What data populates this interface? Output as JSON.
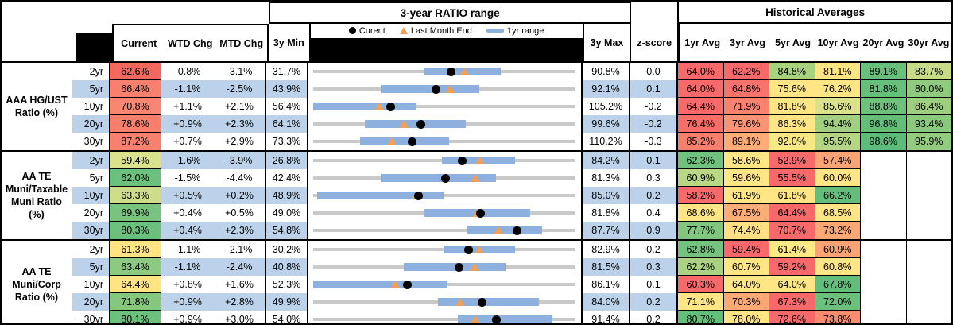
{
  "header": {
    "chart_group_title": "3-year RATIO range",
    "hist_group_title": "Historical Averages",
    "columns": {
      "current": "Current",
      "wtd": "WTD Chg",
      "mtd": "MTD Chg",
      "min": "3y Min",
      "max": "3y Max",
      "z": "z-score"
    },
    "avg_columns": [
      "1yr Avg",
      "3yr Avg",
      "5yr Avg",
      "10yr Avg",
      "20yr Avg",
      "30yr Avg"
    ],
    "legend": {
      "current": "Curent",
      "last_month_end": "Last Month End",
      "range": "1yr range"
    }
  },
  "colors": {
    "stripe": "#BCD2EA",
    "range_bar": "#8EB0DF",
    "range_line": "#C9C9C9",
    "triangle": "#F2A057",
    "dot": "#000000",
    "heat_red": "#F8696B",
    "heat_yellow": "#FFE583",
    "heat_green": "#63BE7B"
  },
  "chart_data": {
    "type": "table",
    "note": "Each row has an inline range chart: gray line spans 3y Min to 3y Max, blue bar is 1yr range, black dot is Current, orange triangle is Last Month End.",
    "sections": [
      {
        "label": "AAA HG/UST Ratio (%)",
        "rows": [
          {
            "tenor": "2yr",
            "current": "62.6%",
            "current_color": "#F4695F",
            "wtd": "-0.8%",
            "mtd": "-3.1%",
            "min": "31.7%",
            "max": "90.8%",
            "z": "0.0",
            "chart": {
              "bar_lo": 56.5,
              "bar_hi": 73.9,
              "lme": 65.7
            },
            "avgs": [
              {
                "v": "64.0%",
                "c": "#F8696B"
              },
              {
                "v": "62.2%",
                "c": "#F8696B"
              },
              {
                "v": "84.8%",
                "c": "#A9D27F"
              },
              {
                "v": "81.1%",
                "c": "#FFE583"
              },
              {
                "v": "89.1%",
                "c": "#69C07C"
              },
              {
                "v": "83.7%",
                "c": "#C7DB88"
              }
            ]
          },
          {
            "tenor": "5yr",
            "current": "66.4%",
            "current_color": "#F8806E",
            "wtd": "-1.1%",
            "mtd": "-2.5%",
            "min": "43.9%",
            "max": "92.1%",
            "z": "0.1",
            "chart": {
              "bar_lo": 56.3,
              "bar_hi": 74.3,
              "lme": 68.9
            },
            "avgs": [
              {
                "v": "64.0%",
                "c": "#F8696B"
              },
              {
                "v": "64.8%",
                "c": "#F8736C"
              },
              {
                "v": "75.6%",
                "c": "#FFE583"
              },
              {
                "v": "76.2%",
                "c": "#FFE583"
              },
              {
                "v": "81.8%",
                "c": "#66BF7B"
              },
              {
                "v": "80.0%",
                "c": "#90CA7E"
              }
            ]
          },
          {
            "tenor": "10yr",
            "current": "70.8%",
            "current_color": "#F98672",
            "wtd": "+1.1%",
            "mtd": "+2.1%",
            "min": "56.4%",
            "max": "105.2%",
            "z": "-0.2",
            "chart": {
              "bar_lo": 56.4,
              "bar_hi": 75.5,
              "lme": 68.7
            },
            "avgs": [
              {
                "v": "64.4%",
                "c": "#F8696B"
              },
              {
                "v": "71.9%",
                "c": "#F9836F"
              },
              {
                "v": "81.8%",
                "c": "#FFE583"
              },
              {
                "v": "85.6%",
                "c": "#DCE28C"
              },
              {
                "v": "88.8%",
                "c": "#6EC17D"
              },
              {
                "v": "86.4%",
                "c": "#9FCE80"
              }
            ]
          },
          {
            "tenor": "20yr",
            "current": "78.6%",
            "current_color": "#F87F6C",
            "wtd": "+0.9%",
            "mtd": "+2.3%",
            "min": "64.1%",
            "max": "99.6%",
            "z": "-0.2",
            "chart": {
              "bar_lo": 71.1,
              "bar_hi": 84.7,
              "lme": 76.3
            },
            "avgs": [
              {
                "v": "76.4%",
                "c": "#F86C6A"
              },
              {
                "v": "79.6%",
                "c": "#FA9474"
              },
              {
                "v": "86.3%",
                "c": "#FFE583"
              },
              {
                "v": "94.4%",
                "c": "#A2CF80"
              },
              {
                "v": "96.8%",
                "c": "#63BE7A"
              },
              {
                "v": "93.4%",
                "c": "#8CC97E"
              }
            ]
          },
          {
            "tenor": "30yr",
            "current": "87.2%",
            "current_color": "#F8806E",
            "wtd": "+0.7%",
            "mtd": "+2.9%",
            "min": "73.3%",
            "max": "110.2%",
            "z": "-0.3",
            "chart": {
              "bar_lo": 79.9,
              "bar_hi": 92.4,
              "lme": 84.3
            },
            "avgs": [
              {
                "v": "85.2%",
                "c": "#F87F6C"
              },
              {
                "v": "89.1%",
                "c": "#FBAC77"
              },
              {
                "v": "92.0%",
                "c": "#F8E883"
              },
              {
                "v": "95.5%",
                "c": "#B5D584"
              },
              {
                "v": "98.6%",
                "c": "#5DBC79"
              },
              {
                "v": "95.9%",
                "c": "#93CC7F"
              }
            ]
          }
        ]
      },
      {
        "label": "AA TE Muni/Taxable Muni Ratio (%)",
        "rows": [
          {
            "tenor": "2yr",
            "current": "59.4%",
            "current_color": "#D9E18C",
            "wtd": "-1.6%",
            "mtd": "-3.9%",
            "min": "26.8%",
            "max": "84.2%",
            "z": "0.1",
            "chart": {
              "bar_lo": 54.9,
              "bar_hi": 70.9,
              "lme": 63.3
            },
            "avgs": [
              {
                "v": "62.3%",
                "c": "#70C17D"
              },
              {
                "v": "58.6%",
                "c": "#FFE583"
              },
              {
                "v": "52.9%",
                "c": "#F8696B"
              },
              {
                "v": "57.4%",
                "c": "#FAA475"
              },
              {
                "v": "",
                "c": ""
              },
              {
                "v": "",
                "c": ""
              }
            ]
          },
          {
            "tenor": "5yr",
            "current": "62.0%",
            "current_color": "#6CC07D",
            "wtd": "-1.5%",
            "mtd": "-4.4%",
            "min": "42.4%",
            "max": "81.3%",
            "z": "0.3",
            "chart": {
              "bar_lo": 52.4,
              "bar_hi": 69.4,
              "lme": 66.4
            },
            "avgs": [
              {
                "v": "60.9%",
                "c": "#B9D785"
              },
              {
                "v": "59.6%",
                "c": "#FFE583"
              },
              {
                "v": "55.5%",
                "c": "#F8696B"
              },
              {
                "v": "60.0%",
                "c": "#FFE583"
              },
              {
                "v": "",
                "c": ""
              },
              {
                "v": "",
                "c": ""
              }
            ]
          },
          {
            "tenor": "10yr",
            "current": "63.3%",
            "current_color": "#CEDD8A",
            "wtd": "+0.5%",
            "mtd": "+0.2%",
            "min": "48.9%",
            "max": "85.0%",
            "z": "0.2",
            "chart": {
              "bar_lo": 49.4,
              "bar_hi": 66.8,
              "lme": 63.1
            },
            "avgs": [
              {
                "v": "58.2%",
                "c": "#F8696B"
              },
              {
                "v": "61.9%",
                "c": "#FFE583"
              },
              {
                "v": "61.8%",
                "c": "#FFE583"
              },
              {
                "v": "66.2%",
                "c": "#63BE7B"
              },
              {
                "v": "",
                "c": ""
              },
              {
                "v": "",
                "c": ""
              }
            ]
          },
          {
            "tenor": "20yr",
            "current": "69.9%",
            "current_color": "#78C37F",
            "wtd": "+0.4%",
            "mtd": "+0.5%",
            "min": "49.0%",
            "max": "81.8%",
            "z": "0.4",
            "chart": {
              "bar_lo": 62.9,
              "bar_hi": 76.1,
              "lme": 69.4
            },
            "avgs": [
              {
                "v": "68.6%",
                "c": "#FFE583"
              },
              {
                "v": "67.5%",
                "c": "#FBAD77"
              },
              {
                "v": "64.4%",
                "c": "#F8696B"
              },
              {
                "v": "68.5%",
                "c": "#FFE583"
              },
              {
                "v": "",
                "c": ""
              },
              {
                "v": "",
                "c": ""
              }
            ]
          },
          {
            "tenor": "30yr",
            "current": "80.3%",
            "current_color": "#6CC07D",
            "wtd": "+0.4%",
            "mtd": "+2.3%",
            "min": "54.8%",
            "max": "87.7%",
            "z": "0.9",
            "chart": {
              "bar_lo": 74.1,
              "bar_hi": 83.4,
              "lme": 78.0
            },
            "avgs": [
              {
                "v": "77.7%",
                "c": "#80C67F"
              },
              {
                "v": "74.4%",
                "c": "#FFE083"
              },
              {
                "v": "70.7%",
                "c": "#F8696B"
              },
              {
                "v": "73.2%",
                "c": "#FBA874"
              },
              {
                "v": "",
                "c": ""
              },
              {
                "v": "",
                "c": ""
              }
            ]
          }
        ]
      },
      {
        "label": "AA TE Muni/Corp Ratio (%)",
        "rows": [
          {
            "tenor": "2yr",
            "current": "61.3%",
            "current_color": "#FFE483",
            "wtd": "-1.1%",
            "mtd": "-2.1%",
            "min": "30.2%",
            "max": "82.9%",
            "z": "0.2",
            "chart": {
              "bar_lo": 56.3,
              "bar_hi": 70.7,
              "lme": 63.4
            },
            "avgs": [
              {
                "v": "62.8%",
                "c": "#74C27E"
              },
              {
                "v": "59.4%",
                "c": "#F8696B"
              },
              {
                "v": "61.4%",
                "c": "#FDE983"
              },
              {
                "v": "60.9%",
                "c": "#FAA475"
              },
              {
                "v": "",
                "c": ""
              },
              {
                "v": "",
                "c": ""
              }
            ]
          },
          {
            "tenor": "5yr",
            "current": "63.4%",
            "current_color": "#8CCA81",
            "wtd": "-1.1%",
            "mtd": "-2.4%",
            "min": "40.8%",
            "max": "81.5%",
            "z": "0.3",
            "chart": {
              "bar_lo": 54.8,
              "bar_hi": 70.5,
              "lme": 65.8
            },
            "avgs": [
              {
                "v": "62.2%",
                "c": "#ABD283"
              },
              {
                "v": "60.7%",
                "c": "#FFE583"
              },
              {
                "v": "59.2%",
                "c": "#F8696B"
              },
              {
                "v": "60.8%",
                "c": "#FFE583"
              },
              {
                "v": "",
                "c": ""
              },
              {
                "v": "",
                "c": ""
              }
            ]
          },
          {
            "tenor": "10yr",
            "current": "64.4%",
            "current_color": "#FFE483",
            "wtd": "+0.8%",
            "mtd": "+1.6%",
            "min": "52.3%",
            "max": "86.1%",
            "z": "0.1",
            "chart": {
              "bar_lo": 52.3,
              "bar_hi": 69.6,
              "lme": 62.8
            },
            "avgs": [
              {
                "v": "60.3%",
                "c": "#F8696B"
              },
              {
                "v": "64.0%",
                "c": "#FFE583"
              },
              {
                "v": "64.0%",
                "c": "#FFE583"
              },
              {
                "v": "67.8%",
                "c": "#63BE7B"
              },
              {
                "v": "",
                "c": ""
              },
              {
                "v": "",
                "c": ""
              }
            ]
          },
          {
            "tenor": "20yr",
            "current": "71.8%",
            "current_color": "#85C77F",
            "wtd": "+0.9%",
            "mtd": "+2.8%",
            "min": "49.9%",
            "max": "84.0%",
            "z": "0.2",
            "chart": {
              "bar_lo": 66.1,
              "bar_hi": 79.2,
              "lme": 69.0
            },
            "avgs": [
              {
                "v": "71.1%",
                "c": "#FFE583"
              },
              {
                "v": "70.3%",
                "c": "#FBA874"
              },
              {
                "v": "67.3%",
                "c": "#F8696B"
              },
              {
                "v": "72.0%",
                "c": "#6CC07D"
              },
              {
                "v": "",
                "c": ""
              },
              {
                "v": "",
                "c": ""
              }
            ]
          },
          {
            "tenor": "30yr",
            "current": "80.1%",
            "current_color": "#6CC07D",
            "wtd": "+0.9%",
            "mtd": "+3.0%",
            "min": "54.0%",
            "max": "91.4%",
            "z": "0.2",
            "chart": {
              "bar_lo": 74.6,
              "bar_hi": 88.0,
              "lme": 77.1
            },
            "avgs": [
              {
                "v": "80.7%",
                "c": "#63BE7B"
              },
              {
                "v": "78.0%",
                "c": "#FFE583"
              },
              {
                "v": "72.6%",
                "c": "#F8696B"
              },
              {
                "v": "73.8%",
                "c": "#F98C70"
              },
              {
                "v": "",
                "c": ""
              },
              {
                "v": "",
                "c": ""
              }
            ]
          }
        ]
      }
    ]
  }
}
